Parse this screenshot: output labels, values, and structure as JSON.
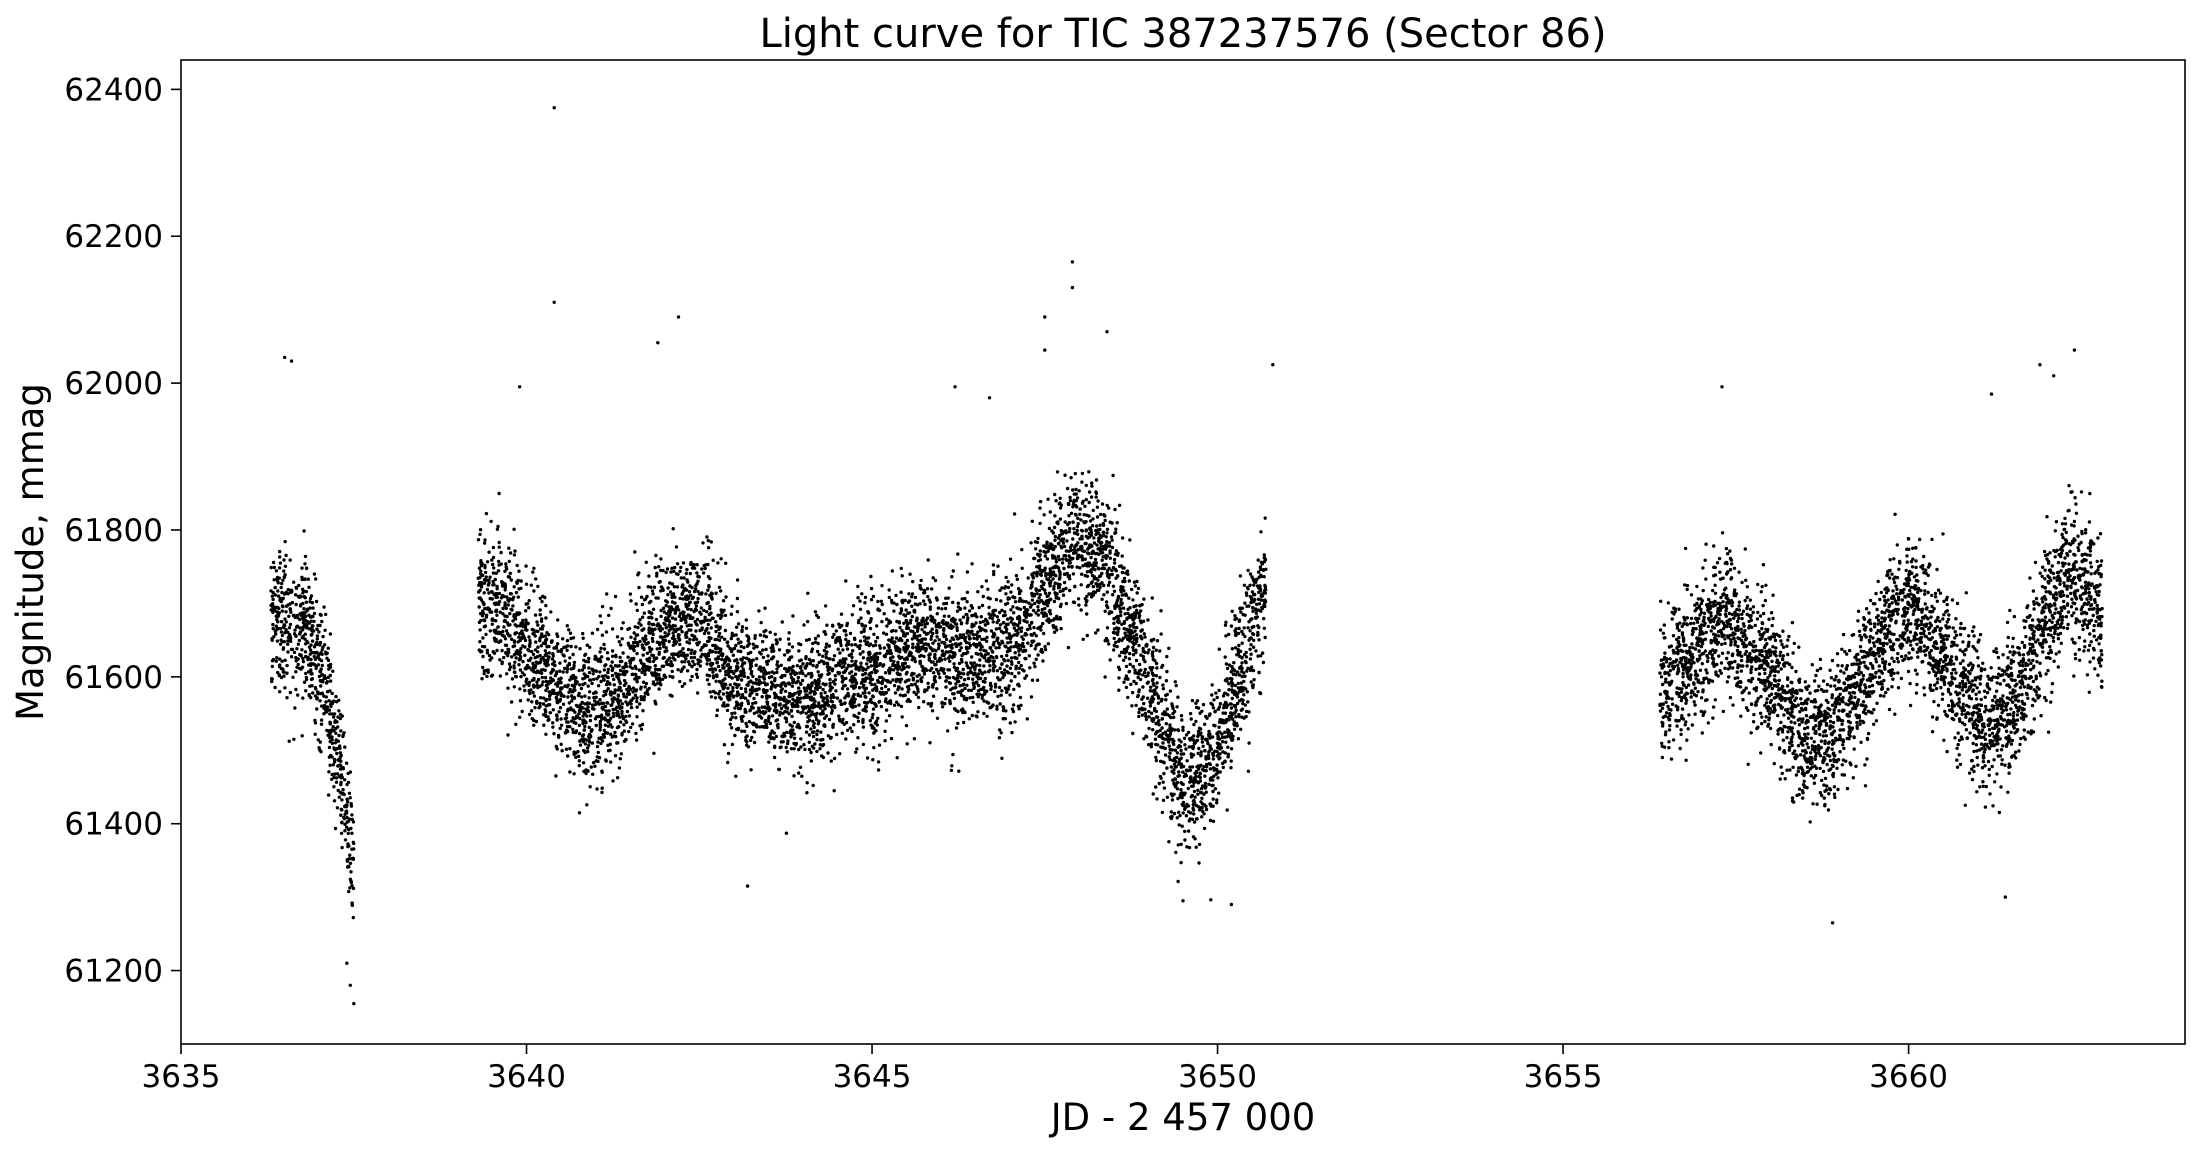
{
  "chart_data": {
    "type": "scatter",
    "title": "Light curve for TIC 387237576 (Sector 86)",
    "xlabel": "JD - 2 457 000",
    "ylabel": "Magnitude, mmag",
    "xlim": [
      3635,
      3664
    ],
    "ylim": [
      61100,
      62440
    ],
    "x_ticks": [
      3635,
      3640,
      3645,
      3650,
      3655,
      3660
    ],
    "x_tick_labels": [
      "3635",
      "3640",
      "3645",
      "3650",
      "3655",
      "3660"
    ],
    "y_ticks": [
      61200,
      61400,
      61600,
      61800,
      62000,
      62200,
      62400
    ],
    "y_tick_labels": [
      "61200",
      "61400",
      "61600",
      "61800",
      "62000",
      "62200",
      "62400"
    ],
    "grid": false,
    "legend": "none",
    "marker_color": "#000000",
    "series": [
      {
        "trend_points": [
          [
            3636.3,
            61670
          ],
          [
            3636.6,
            61680
          ],
          [
            3636.9,
            61650
          ],
          [
            3637.1,
            61580
          ],
          [
            3637.3,
            61480
          ],
          [
            3637.5,
            61340
          ],
          [
            3639.3,
            61690
          ],
          [
            3639.6,
            61700
          ],
          [
            3640.0,
            61640
          ],
          [
            3640.5,
            61580
          ],
          [
            3640.9,
            61550
          ],
          [
            3641.3,
            61570
          ],
          [
            3641.8,
            61640
          ],
          [
            3642.3,
            61690
          ],
          [
            3642.75,
            61650
          ],
          [
            3642.9,
            61600
          ],
          [
            3643.5,
            61580
          ],
          [
            3644.0,
            61570
          ],
          [
            3644.5,
            61590
          ],
          [
            3645.0,
            61610
          ],
          [
            3645.5,
            61640
          ],
          [
            3646.0,
            61640
          ],
          [
            3646.5,
            61620
          ],
          [
            3647.0,
            61640
          ],
          [
            3647.5,
            61720
          ],
          [
            3647.9,
            61790
          ],
          [
            3648.3,
            61760
          ],
          [
            3648.7,
            61680
          ],
          [
            3649.1,
            61560
          ],
          [
            3649.5,
            61460
          ],
          [
            3649.9,
            61480
          ],
          [
            3650.3,
            61600
          ],
          [
            3650.7,
            61720
          ],
          [
            3656.4,
            61580
          ],
          [
            3656.8,
            61620
          ],
          [
            3657.1,
            61660
          ],
          [
            3657.35,
            61680
          ],
          [
            3657.7,
            61640
          ],
          [
            3658.0,
            61610
          ],
          [
            3658.3,
            61560
          ],
          [
            3658.5,
            61510
          ],
          [
            3658.9,
            61520
          ],
          [
            3659.3,
            61590
          ],
          [
            3659.7,
            61670
          ],
          [
            3660.0,
            61700
          ],
          [
            3660.4,
            61640
          ],
          [
            3660.8,
            61580
          ],
          [
            3661.2,
            61520
          ],
          [
            3661.6,
            61580
          ],
          [
            3662.0,
            61680
          ],
          [
            3662.4,
            61740
          ],
          [
            3662.8,
            61680
          ]
        ],
        "outliers": [
          [
            3640.4,
            62375
          ],
          [
            3640.4,
            62110
          ],
          [
            3642.2,
            62090
          ],
          [
            3641.9,
            62055
          ],
          [
            3647.9,
            62165
          ],
          [
            3647.9,
            62130
          ],
          [
            3648.4,
            62070
          ],
          [
            3647.5,
            62090
          ],
          [
            3647.5,
            62045
          ],
          [
            3636.5,
            62035
          ],
          [
            3636.6,
            62030
          ],
          [
            3650.8,
            62025
          ],
          [
            3662.4,
            62045
          ],
          [
            3661.9,
            62025
          ],
          [
            3662.1,
            62010
          ],
          [
            3657.3,
            61995
          ],
          [
            3639.9,
            61995
          ],
          [
            3661.2,
            61985
          ],
          [
            3646.2,
            61995
          ],
          [
            3646.7,
            61980
          ],
          [
            3637.5,
            61155
          ],
          [
            3637.45,
            61180
          ],
          [
            3637.4,
            61210
          ],
          [
            3658.9,
            61265
          ],
          [
            3643.2,
            61315
          ],
          [
            3661.4,
            61300
          ],
          [
            3650.2,
            61290
          ],
          [
            3649.5,
            61295
          ]
        ]
      }
    ]
  }
}
